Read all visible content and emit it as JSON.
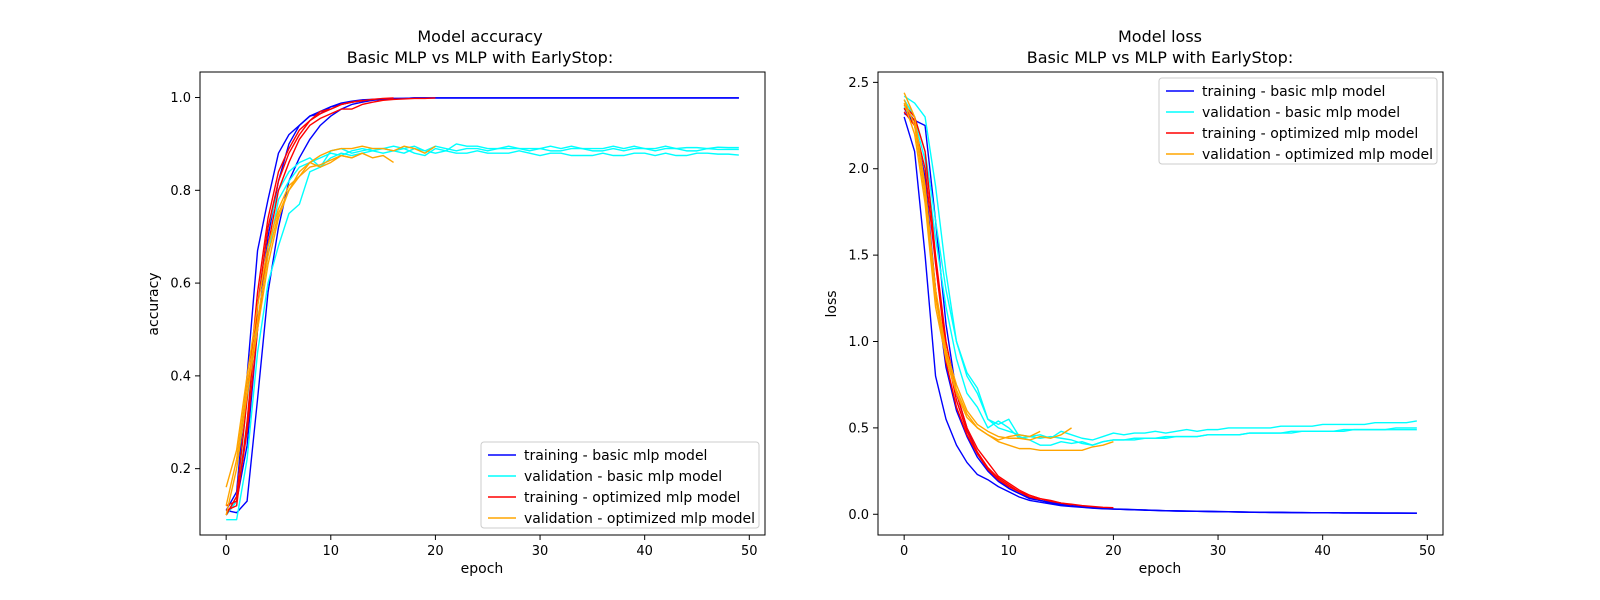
{
  "chart_data": [
    {
      "type": "line",
      "title_line1": "Model accuracy",
      "title_line2": "Basic MLP vs MLP with EarlyStop:",
      "xlabel": "epoch",
      "ylabel": "accuracy",
      "xlim": [
        -2.5,
        51.5
      ],
      "ylim": [
        0.057,
        1.055
      ],
      "xticks": [
        0,
        10,
        20,
        30,
        40,
        50
      ],
      "yticks": [
        0.2,
        0.4,
        0.6,
        0.8,
        1.0
      ],
      "ytick_labels": [
        "0.2",
        "0.4",
        "0.6",
        "0.8",
        "1.0"
      ],
      "legend_position": "lower-right",
      "legend": [
        {
          "label": "training - basic mlp model",
          "color": "#0000ff"
        },
        {
          "label": "validation - basic mlp model",
          "color": "#00ffff"
        },
        {
          "label": "training - optimized mlp model",
          "color": "#ff0000"
        },
        {
          "label": "validation - optimized mlp model",
          "color": "#ffa500"
        }
      ],
      "series": [
        {
          "color": "#0000ff",
          "values": [
            0.11,
            0.15,
            0.4,
            0.67,
            0.78,
            0.88,
            0.92,
            0.94,
            0.96,
            0.97,
            0.98,
            0.985,
            0.99,
            0.993,
            0.995,
            0.997,
            0.998,
            0.998,
            0.999,
            0.999,
            0.999,
            0.999,
            0.999,
            0.999,
            0.999,
            0.999,
            0.999,
            0.999,
            0.999,
            0.999,
            0.999,
            0.999,
            0.999,
            0.999,
            0.999,
            0.999,
            0.999,
            0.999,
            0.999,
            0.999,
            0.999,
            0.999,
            0.999,
            0.999,
            0.999,
            0.999,
            0.999,
            0.999,
            0.999,
            0.999
          ]
        },
        {
          "color": "#0000ff",
          "values": [
            0.1,
            0.13,
            0.25,
            0.5,
            0.7,
            0.82,
            0.9,
            0.94,
            0.96,
            0.965,
            0.98,
            0.988,
            0.992,
            0.995,
            0.996,
            0.997,
            0.998,
            0.998,
            0.999,
            0.999,
            0.999,
            0.999,
            0.999,
            0.999,
            0.999,
            0.999,
            0.999,
            0.999,
            0.999,
            0.999,
            0.999,
            0.999,
            0.999,
            0.999,
            0.999,
            0.999,
            0.999,
            0.999,
            0.999,
            0.999,
            0.999,
            0.999,
            0.999,
            0.999,
            0.999,
            0.999,
            0.999,
            0.999,
            0.999,
            0.999
          ]
        },
        {
          "color": "#0000ff",
          "values": [
            0.11,
            0.105,
            0.13,
            0.35,
            0.58,
            0.72,
            0.82,
            0.87,
            0.91,
            0.94,
            0.96,
            0.975,
            0.985,
            0.99,
            0.994,
            0.996,
            0.997,
            0.998,
            0.999,
            0.999,
            0.999,
            0.999,
            0.999,
            0.999,
            0.999,
            0.999,
            0.999,
            0.999,
            0.999,
            0.999,
            0.999,
            0.999,
            0.999,
            0.999,
            0.999,
            0.999,
            0.999,
            0.999,
            0.999,
            0.999,
            0.999,
            0.999,
            0.999,
            0.999,
            0.999,
            0.999,
            0.999,
            0.999,
            0.999,
            0.999
          ]
        },
        {
          "color": "#00ffff",
          "values": [
            0.09,
            0.09,
            0.22,
            0.45,
            0.6,
            0.68,
            0.75,
            0.77,
            0.84,
            0.85,
            0.87,
            0.88,
            0.875,
            0.88,
            0.885,
            0.88,
            0.885,
            0.88,
            0.89,
            0.885,
            0.88,
            0.885,
            0.88,
            0.88,
            0.885,
            0.88,
            0.88,
            0.88,
            0.885,
            0.88,
            0.875,
            0.88,
            0.88,
            0.875,
            0.875,
            0.875,
            0.88,
            0.875,
            0.875,
            0.88,
            0.88,
            0.875,
            0.88,
            0.875,
            0.875,
            0.88,
            0.88,
            0.878,
            0.878,
            0.876
          ]
        },
        {
          "color": "#00ffff",
          "values": [
            0.1,
            0.14,
            0.35,
            0.52,
            0.66,
            0.78,
            0.82,
            0.85,
            0.86,
            0.87,
            0.88,
            0.875,
            0.885,
            0.89,
            0.885,
            0.89,
            0.885,
            0.89,
            0.895,
            0.885,
            0.895,
            0.89,
            0.885,
            0.89,
            0.89,
            0.885,
            0.89,
            0.89,
            0.89,
            0.885,
            0.89,
            0.885,
            0.885,
            0.89,
            0.89,
            0.885,
            0.885,
            0.89,
            0.885,
            0.89,
            0.89,
            0.885,
            0.89,
            0.89,
            0.885,
            0.885,
            0.89,
            0.888,
            0.888,
            0.888
          ]
        },
        {
          "color": "#00ffff",
          "values": [
            0.1,
            0.13,
            0.3,
            0.55,
            0.72,
            0.8,
            0.84,
            0.86,
            0.87,
            0.85,
            0.885,
            0.89,
            0.88,
            0.885,
            0.89,
            0.89,
            0.895,
            0.89,
            0.88,
            0.875,
            0.89,
            0.885,
            0.9,
            0.895,
            0.895,
            0.89,
            0.89,
            0.895,
            0.89,
            0.89,
            0.89,
            0.895,
            0.89,
            0.895,
            0.89,
            0.89,
            0.89,
            0.895,
            0.89,
            0.895,
            0.89,
            0.89,
            0.895,
            0.89,
            0.892,
            0.892,
            0.89,
            0.893,
            0.892,
            0.892
          ]
        },
        {
          "color": "#ff0000",
          "values": [
            0.11,
            0.12,
            0.3,
            0.55,
            0.72,
            0.82,
            0.88,
            0.92,
            0.95,
            0.97,
            0.975,
            0.985,
            0.99,
            0.993,
            0.996,
            0.998,
            0.999
          ]
        },
        {
          "color": "#ff0000",
          "values": [
            0.1,
            0.14,
            0.35,
            0.58,
            0.74,
            0.84,
            0.89,
            0.93,
            0.95,
            0.965,
            0.975,
            0.985,
            0.99,
            0.994
          ]
        },
        {
          "color": "#ff0000",
          "values": [
            0.12,
            0.13,
            0.28,
            0.5,
            0.68,
            0.8,
            0.86,
            0.91,
            0.94,
            0.955,
            0.965,
            0.975,
            0.975,
            0.985,
            0.99,
            0.994,
            0.996,
            0.997,
            0.998,
            0.998,
            0.999
          ]
        },
        {
          "color": "#ffa500",
          "values": [
            0.16,
            0.24,
            0.4,
            0.55,
            0.68,
            0.76,
            0.81,
            0.83,
            0.86,
            0.85,
            0.86,
            0.875,
            0.87,
            0.88,
            0.87,
            0.875,
            0.86
          ]
        },
        {
          "color": "#ffa500",
          "values": [
            0.12,
            0.22,
            0.38,
            0.52,
            0.66,
            0.75,
            0.8,
            0.83,
            0.85,
            0.855,
            0.865,
            0.875,
            0.87,
            0.88
          ]
        },
        {
          "color": "#ffa500",
          "values": [
            0.1,
            0.2,
            0.36,
            0.5,
            0.64,
            0.74,
            0.8,
            0.84,
            0.86,
            0.875,
            0.885,
            0.89,
            0.89,
            0.895,
            0.89,
            0.89,
            0.885,
            0.895,
            0.89,
            0.88,
            0.895
          ]
        }
      ]
    },
    {
      "type": "line",
      "title_line1": "Model loss",
      "title_line2": "Basic MLP vs MLP with EarlyStop:",
      "xlabel": "epoch",
      "ylabel": "loss",
      "xlim": [
        -2.5,
        51.5
      ],
      "ylim": [
        -0.12,
        2.56
      ],
      "xticks": [
        0,
        10,
        20,
        30,
        40,
        50
      ],
      "yticks": [
        0.0,
        0.5,
        1.0,
        1.5,
        2.0,
        2.5
      ],
      "ytick_labels": [
        "0.0",
        "0.5",
        "1.0",
        "1.5",
        "2.0",
        "2.5"
      ],
      "legend_position": "upper-right",
      "legend": [
        {
          "label": "training - basic mlp model",
          "color": "#0000ff"
        },
        {
          "label": "validation - basic mlp model",
          "color": "#00ffff"
        },
        {
          "label": "training - optimized mlp model",
          "color": "#ff0000"
        },
        {
          "label": "validation - optimized mlp model",
          "color": "#ffa500"
        }
      ],
      "series": [
        {
          "color": "#0000ff",
          "values": [
            2.3,
            2.1,
            1.5,
            0.8,
            0.55,
            0.4,
            0.3,
            0.23,
            0.2,
            0.16,
            0.13,
            0.1,
            0.08,
            0.07,
            0.06,
            0.05,
            0.045,
            0.04,
            0.035,
            0.032,
            0.03,
            0.028,
            0.026,
            0.024,
            0.022,
            0.02,
            0.019,
            0.018,
            0.017,
            0.016,
            0.015,
            0.014,
            0.013,
            0.012,
            0.011,
            0.011,
            0.01,
            0.01,
            0.009,
            0.009,
            0.009,
            0.008,
            0.008,
            0.008,
            0.007,
            0.007,
            0.007,
            0.007,
            0.006,
            0.006
          ]
        },
        {
          "color": "#0000ff",
          "values": [
            2.32,
            2.28,
            2.25,
            1.7,
            1.1,
            0.7,
            0.5,
            0.35,
            0.26,
            0.2,
            0.15,
            0.12,
            0.09,
            0.08,
            0.065,
            0.055,
            0.048,
            0.042,
            0.037,
            0.033,
            0.03,
            0.028,
            0.026,
            0.024,
            0.022,
            0.021,
            0.019,
            0.018,
            0.017,
            0.016,
            0.015,
            0.014,
            0.013,
            0.012,
            0.012,
            0.011,
            0.011,
            0.01,
            0.01,
            0.009,
            0.009,
            0.009,
            0.008,
            0.008,
            0.008,
            0.007,
            0.007,
            0.007,
            0.007,
            0.006
          ]
        },
        {
          "color": "#0000ff",
          "values": [
            2.35,
            2.25,
            1.95,
            1.3,
            0.85,
            0.6,
            0.45,
            0.33,
            0.25,
            0.19,
            0.15,
            0.12,
            0.095,
            0.08,
            0.07,
            0.06,
            0.05,
            0.044,
            0.039,
            0.035,
            0.031,
            0.029,
            0.027,
            0.025,
            0.023,
            0.021,
            0.02,
            0.019,
            0.018,
            0.017,
            0.016,
            0.015,
            0.014,
            0.013,
            0.012,
            0.011,
            0.011,
            0.01,
            0.01,
            0.009,
            0.009,
            0.009,
            0.008,
            0.008,
            0.008,
            0.008,
            0.007,
            0.007,
            0.007,
            0.007
          ]
        },
        {
          "color": "#00ffff",
          "values": [
            2.42,
            2.38,
            2.3,
            1.9,
            1.4,
            1.0,
            0.8,
            0.7,
            0.55,
            0.52,
            0.55,
            0.45,
            0.43,
            0.4,
            0.4,
            0.42,
            0.41,
            0.42,
            0.4,
            0.42,
            0.43,
            0.43,
            0.44,
            0.44,
            0.44,
            0.45,
            0.45,
            0.45,
            0.45,
            0.46,
            0.46,
            0.46,
            0.46,
            0.47,
            0.47,
            0.47,
            0.47,
            0.48,
            0.48,
            0.48,
            0.48,
            0.48,
            0.49,
            0.49,
            0.49,
            0.49,
            0.49,
            0.5,
            0.5,
            0.5
          ]
        },
        {
          "color": "#00ffff",
          "values": [
            2.4,
            2.3,
            2.1,
            1.7,
            1.3,
            1.0,
            0.82,
            0.73,
            0.55,
            0.5,
            0.48,
            0.46,
            0.45,
            0.44,
            0.45,
            0.44,
            0.43,
            0.41,
            0.4,
            0.42,
            0.43,
            0.43,
            0.43,
            0.44,
            0.44,
            0.44,
            0.45,
            0.45,
            0.45,
            0.46,
            0.46,
            0.46,
            0.46,
            0.47,
            0.47,
            0.47,
            0.47,
            0.47,
            0.48,
            0.48,
            0.48,
            0.48,
            0.48,
            0.49,
            0.49,
            0.49,
            0.49,
            0.49,
            0.49,
            0.49
          ]
        },
        {
          "color": "#00ffff",
          "values": [
            2.36,
            2.28,
            2.05,
            1.6,
            1.2,
            0.9,
            0.7,
            0.62,
            0.5,
            0.54,
            0.5,
            0.44,
            0.45,
            0.46,
            0.44,
            0.48,
            0.46,
            0.44,
            0.43,
            0.45,
            0.47,
            0.46,
            0.47,
            0.47,
            0.48,
            0.47,
            0.48,
            0.49,
            0.48,
            0.49,
            0.49,
            0.5,
            0.5,
            0.5,
            0.5,
            0.5,
            0.51,
            0.51,
            0.51,
            0.51,
            0.52,
            0.52,
            0.52,
            0.52,
            0.52,
            0.53,
            0.53,
            0.53,
            0.53,
            0.54
          ]
        },
        {
          "color": "#ff0000",
          "values": [
            2.37,
            2.3,
            2.1,
            1.5,
            1.0,
            0.7,
            0.5,
            0.38,
            0.3,
            0.22,
            0.18,
            0.14,
            0.11,
            0.09,
            0.08,
            0.065,
            0.055
          ]
        },
        {
          "color": "#ff0000",
          "values": [
            2.35,
            2.28,
            1.9,
            1.3,
            0.88,
            0.62,
            0.46,
            0.35,
            0.26,
            0.2,
            0.16,
            0.13,
            0.1,
            0.085
          ]
        },
        {
          "color": "#ff0000",
          "values": [
            2.33,
            2.25,
            2.0,
            1.45,
            0.95,
            0.66,
            0.48,
            0.36,
            0.27,
            0.21,
            0.17,
            0.13,
            0.11,
            0.09,
            0.075,
            0.065,
            0.058,
            0.05,
            0.045,
            0.04,
            0.038
          ]
        },
        {
          "color": "#ffa500",
          "values": [
            2.44,
            2.3,
            1.9,
            1.3,
            0.95,
            0.75,
            0.6,
            0.52,
            0.48,
            0.45,
            0.44,
            0.44,
            0.43,
            0.45,
            0.44,
            0.46,
            0.5
          ]
        },
        {
          "color": "#ffa500",
          "values": [
            2.4,
            2.25,
            1.85,
            1.25,
            0.92,
            0.72,
            0.58,
            0.5,
            0.46,
            0.43,
            0.45,
            0.46,
            0.45,
            0.48
          ]
        },
        {
          "color": "#ffa500",
          "values": [
            2.38,
            2.2,
            1.8,
            1.2,
            0.9,
            0.7,
            0.56,
            0.5,
            0.46,
            0.42,
            0.4,
            0.38,
            0.38,
            0.37,
            0.37,
            0.37,
            0.37,
            0.37,
            0.39,
            0.4,
            0.42
          ]
        }
      ]
    }
  ]
}
